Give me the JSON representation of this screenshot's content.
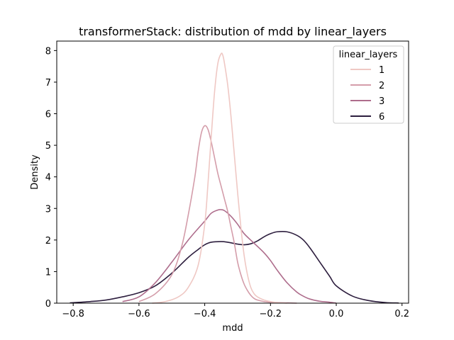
{
  "chart_data": {
    "type": "line",
    "title": "transformerStack: distribution of mdd by linear_layers",
    "xlabel": "mdd",
    "ylabel": "Density",
    "xlim": [
      -0.85,
      0.22
    ],
    "ylim": [
      0,
      8.3
    ],
    "xticks": [
      -0.8,
      -0.6,
      -0.4,
      -0.2,
      0.0,
      0.2
    ],
    "xtick_labels": [
      "−0.8",
      "−0.6",
      "−0.4",
      "−0.2",
      "0.0",
      "0.2"
    ],
    "yticks": [
      0,
      1,
      2,
      3,
      4,
      5,
      6,
      7,
      8
    ],
    "ytick_labels": [
      "0",
      "1",
      "2",
      "3",
      "4",
      "5",
      "6",
      "7",
      "8"
    ],
    "grid": false,
    "legend": {
      "title": "linear_layers",
      "placement": "top-right"
    },
    "series": [
      {
        "name": "1",
        "color": "#efc8c4",
        "x": [
          -0.56,
          -0.52,
          -0.48,
          -0.45,
          -0.42,
          -0.4,
          -0.39,
          -0.38,
          -0.37,
          -0.36,
          -0.35,
          -0.345,
          -0.34,
          -0.33,
          -0.32,
          -0.31,
          -0.3,
          -0.29,
          -0.28,
          -0.27,
          -0.26,
          -0.25,
          -0.24,
          -0.22,
          -0.2,
          -0.18,
          -0.15
        ],
        "y": [
          0,
          0.05,
          0.2,
          0.5,
          1.2,
          2.5,
          3.8,
          5.3,
          6.7,
          7.6,
          7.9,
          7.85,
          7.6,
          6.9,
          5.9,
          4.7,
          3.5,
          2.4,
          1.5,
          0.9,
          0.5,
          0.3,
          0.2,
          0.1,
          0.05,
          0.02,
          0
        ]
      },
      {
        "name": "2",
        "color": "#d49daa",
        "x": [
          -0.6,
          -0.55,
          -0.5,
          -0.47,
          -0.45,
          -0.43,
          -0.42,
          -0.41,
          -0.4,
          -0.39,
          -0.38,
          -0.37,
          -0.36,
          -0.35,
          -0.34,
          -0.33,
          -0.32,
          -0.31,
          -0.3,
          -0.29,
          -0.28,
          -0.27,
          -0.26,
          -0.25,
          -0.24,
          -0.22,
          -0.2,
          -0.18,
          -0.15,
          -0.12
        ],
        "y": [
          0.05,
          0.3,
          0.9,
          1.8,
          2.8,
          4.0,
          4.8,
          5.4,
          5.62,
          5.5,
          5.1,
          4.6,
          4.1,
          3.7,
          3.3,
          2.9,
          2.4,
          1.9,
          1.3,
          0.9,
          0.6,
          0.4,
          0.25,
          0.15,
          0.1,
          0.05,
          0.03,
          0.02,
          0.01,
          0
        ]
      },
      {
        "name": "3",
        "color": "#ae6d8c",
        "x": [
          -0.65,
          -0.6,
          -0.55,
          -0.5,
          -0.45,
          -0.4,
          -0.38,
          -0.36,
          -0.35,
          -0.34,
          -0.32,
          -0.3,
          -0.28,
          -0.25,
          -0.22,
          -0.2,
          -0.18,
          -0.15,
          -0.12,
          -0.1,
          -0.08,
          -0.05,
          -0.02,
          0.0
        ],
        "y": [
          0.05,
          0.2,
          0.65,
          1.3,
          2.0,
          2.6,
          2.85,
          2.95,
          2.96,
          2.93,
          2.75,
          2.5,
          2.2,
          1.9,
          1.6,
          1.35,
          1.05,
          0.65,
          0.35,
          0.22,
          0.13,
          0.06,
          0.03,
          0
        ]
      },
      {
        "name": "6",
        "color": "#2d1e3e",
        "x": [
          -0.81,
          -0.75,
          -0.7,
          -0.65,
          -0.6,
          -0.55,
          -0.5,
          -0.45,
          -0.42,
          -0.4,
          -0.38,
          -0.35,
          -0.33,
          -0.3,
          -0.28,
          -0.26,
          -0.24,
          -0.22,
          -0.2,
          -0.18,
          -0.15,
          -0.12,
          -0.1,
          -0.08,
          -0.05,
          -0.02,
          0.0,
          0.05,
          0.1,
          0.15,
          0.19
        ],
        "y": [
          0.01,
          0.05,
          0.1,
          0.2,
          0.33,
          0.55,
          0.95,
          1.45,
          1.7,
          1.85,
          1.93,
          1.95,
          1.93,
          1.87,
          1.85,
          1.88,
          1.97,
          2.1,
          2.2,
          2.26,
          2.26,
          2.15,
          2.0,
          1.75,
          1.3,
          0.85,
          0.55,
          0.22,
          0.08,
          0.02,
          0.005
        ]
      }
    ]
  }
}
